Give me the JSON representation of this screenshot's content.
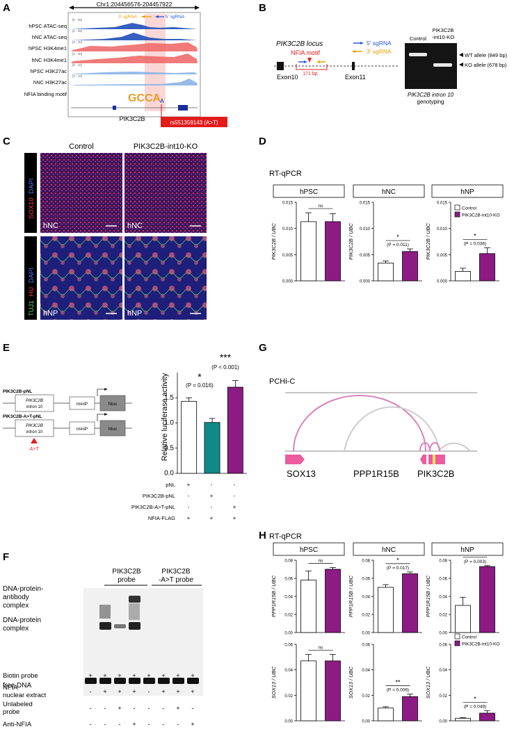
{
  "panels": {
    "A": {
      "letter": "A",
      "coord": "Chr1:204456576-204457922",
      "sgrna3": "3' sgRNA",
      "sgrna5": "5' sgRNA",
      "tracks": [
        "hPSC ATAC-seq",
        "hNC ATAC-seq",
        "hPSC H3K4me1",
        "hNC H3K4me1",
        "hPSC H3K27ac",
        "hNC H3K27ac",
        "NFIA binding motif"
      ],
      "scales": [
        "[0 - 35]",
        "[0 - 25]",
        "[0 - 40]",
        "[0 - 40]",
        "[0 - 10]",
        "[0 - 10]"
      ],
      "gene": "PIK3C2B",
      "motif": "GCCA",
      "motif_alt": "A",
      "snp": "rs551359143 (A>T)",
      "track_colors": [
        "#1f4fb8",
        "#1f4fb8",
        "#ef6b6b",
        "#ef6b6b",
        "#89b4e6",
        "#89b4e6"
      ]
    },
    "B": {
      "letter": "B",
      "locus": "PIK3C2B locus",
      "nfia_motif": "NFIA motif",
      "bp171": "171 bp",
      "exon10": "Exon10",
      "exon11": "Exon11",
      "sg5": "5' sgRNA",
      "sg3": "3' sgRNA",
      "gel_control": "Control",
      "gel_ko1": "PIK3C2B",
      "gel_ko2": "-int10-KO",
      "wt_allele": "WT allele (849 bp)",
      "ko_allele": "KO allele (678 bp)",
      "caption1": "PIK3C2B intron 10",
      "caption2": "genotyping"
    },
    "C": {
      "letter": "C",
      "col_control": "Control",
      "col_ko": "PIK3C2B-int10-KO",
      "row1_sox10": "SOX10",
      "row1_dapi": "DAPI",
      "row2_tuj1": "TUJ1",
      "row2_hu": "HU",
      "row2_dapi": "DAPI",
      "hnc": "hNC",
      "hnp": "hNP"
    },
    "D": {
      "letter": "D",
      "title": "RT-qPCR",
      "legend_control": "Control",
      "legend_ko": "PIK3C2B-int10-KO"
    },
    "E": {
      "letter": "E",
      "construct1": "PIK3C2B-pNL",
      "construct2": "PIK3C2B-A>T-pNL",
      "intron1": "PIK3C2B",
      "intron2": "intron 10",
      "minip": "miniP",
      "nluc": "Nluc",
      "mut": "A>T",
      "ylabel": "Relative luciferase activity",
      "p1": "(P = 0.016)",
      "p2": "(P < 0.001)",
      "star1": "*",
      "star2": "***",
      "row_labels": [
        "pNL",
        "PIK3C2B-pNL",
        "PIK3C2B-A>T-pNL",
        "NFIA-FLAG"
      ],
      "row_signs": [
        [
          "+",
          "-",
          "-"
        ],
        [
          "-",
          "+",
          "-"
        ],
        [
          "-",
          "-",
          "+"
        ],
        [
          "+",
          "+",
          "+"
        ]
      ]
    },
    "F": {
      "letter": "F",
      "probe1": [
        "PIK3C2B",
        "probe"
      ],
      "probe2": [
        "PIK3C2B",
        "-A>T probe"
      ],
      "band1": [
        "DNA-protein-",
        "antibody",
        "complex"
      ],
      "band2": [
        "DNA-protein",
        "complex"
      ],
      "band3": "free DNA",
      "rows": [
        {
          "label": [
            "Biotin probe"
          ],
          "signs": [
            "+",
            "+",
            "+",
            "+",
            "+",
            "+",
            "+",
            "+"
          ]
        },
        {
          "label": [
            "NFIA",
            "nuclear extract"
          ],
          "signs": [
            "-",
            "+",
            "+",
            "+",
            "-",
            "+",
            "+",
            "+"
          ]
        },
        {
          "label": [
            "Unlabeled",
            "probe"
          ],
          "signs": [
            "-",
            "-",
            "+",
            "-",
            "-",
            "-",
            "+",
            "-"
          ]
        },
        {
          "label": [
            "Anti-NFIA"
          ],
          "signs": [
            "-",
            "-",
            "-",
            "+",
            "-",
            "-",
            "-",
            "+"
          ]
        }
      ]
    },
    "G": {
      "letter": "G",
      "title": "PCHi-C",
      "genes": [
        "SOX13",
        "PPP1R15B",
        "PIK3C2B"
      ]
    },
    "H": {
      "letter": "H",
      "title": "RT-qPCR",
      "legend_control": "Control",
      "legend_ko": "PIK3C2B-int10-KO"
    }
  },
  "chart_data": [
    {
      "id": "D-hPSC",
      "type": "bar",
      "title": "hPSC",
      "ylabel": "PIK3C2B / UBC",
      "ylim": [
        0,
        0.015
      ],
      "yticks": [
        "0.000",
        "0.005",
        "0.010",
        "0.015"
      ],
      "categories": [
        "Control",
        "PIK3C2B-int10-KO"
      ],
      "values": [
        0.0113,
        0.0113
      ],
      "errors": [
        0.0017,
        0.0015
      ],
      "sig": "ns",
      "p": ""
    },
    {
      "id": "D-hNC",
      "type": "bar",
      "title": "hNC",
      "ylabel": "PIK3C2B / UBC",
      "ylim": [
        0,
        0.015
      ],
      "yticks": [
        "0.000",
        "0.005",
        "0.010",
        "0.015"
      ],
      "categories": [
        "Control",
        "PIK3C2B-int10-KO"
      ],
      "values": [
        0.0034,
        0.0056
      ],
      "errors": [
        0.0004,
        0.0005
      ],
      "sig": "*",
      "p": "(P = 0.011)"
    },
    {
      "id": "D-hNP",
      "type": "bar",
      "title": "hNP",
      "ylabel": "PIK3C2B / UBC",
      "ylim": [
        0,
        0.015
      ],
      "yticks": [
        "0.000",
        "0.005",
        "0.010",
        "0.015"
      ],
      "categories": [
        "Control",
        "PIK3C2B-int10-KO"
      ],
      "values": [
        0.0018,
        0.0052
      ],
      "errors": [
        0.0006,
        0.0011
      ],
      "sig": "*",
      "p": "(P = 0.036)"
    },
    {
      "id": "E",
      "type": "bar",
      "ylabel": "Relative luciferase activity",
      "ylim": [
        0,
        2.0
      ],
      "yticks": [
        "0.0",
        "0.5",
        "1.0",
        "1.5"
      ],
      "categories": [
        "pNL",
        "PIK3C2B-pNL",
        "PIK3C2B-A>T-pNL"
      ],
      "values": [
        1.43,
        1.01,
        1.71
      ],
      "errors": [
        0.07,
        0.08,
        0.13
      ],
      "colors": [
        "#ffffff",
        "#0f8a87",
        "#8c1b84"
      ]
    },
    {
      "id": "H-PPP-hPSC",
      "type": "bar",
      "title": "hPSC",
      "ylabel": "PPP1R15B / UBC",
      "ylim": [
        0,
        0.08
      ],
      "yticks": [
        "0.00",
        "0.02",
        "0.04",
        "0.06",
        "0.08"
      ],
      "categories": [
        "Control",
        "PIK3C2B-int10-KO"
      ],
      "values": [
        0.058,
        0.07
      ],
      "errors": [
        0.01,
        0.002
      ],
      "sig": "ns",
      "p": ""
    },
    {
      "id": "H-PPP-hNC",
      "type": "bar",
      "title": "hNC",
      "ylabel": "PPP1R15B / UBC",
      "ylim": [
        0,
        0.08
      ],
      "yticks": [
        "0.00",
        "0.02",
        "0.04",
        "0.06",
        "0.08"
      ],
      "categories": [
        "Control",
        "PIK3C2B-int10-KO"
      ],
      "values": [
        0.05,
        0.065
      ],
      "errors": [
        0.003,
        0.002
      ],
      "sig": "*",
      "p": "(P = 0.017)"
    },
    {
      "id": "H-PPP-hNP",
      "type": "bar",
      "title": "hNP",
      "ylabel": "PPP1R15B / UBC",
      "ylim": [
        0,
        0.08
      ],
      "yticks": [
        "0.00",
        "0.02",
        "0.04",
        "0.06",
        "0.08"
      ],
      "categories": [
        "Control",
        "PIK3C2B-int10-KO"
      ],
      "values": [
        0.03,
        0.073
      ],
      "errors": [
        0.009,
        0.001
      ],
      "sig": "**",
      "p": "(P = 0.003)"
    },
    {
      "id": "H-SOX-hPSC",
      "type": "bar",
      "ylabel": "SOX13 / UBC",
      "ylim": [
        0,
        0.06
      ],
      "yticks": [
        "0.00",
        "0.02",
        "0.04",
        "0.06"
      ],
      "categories": [
        "Control",
        "PIK3C2B-int10-KO"
      ],
      "values": [
        0.047,
        0.047
      ],
      "errors": [
        0.005,
        0.005
      ],
      "sig": "ns",
      "p": ""
    },
    {
      "id": "H-SOX-hNC",
      "type": "bar",
      "ylabel": "SOX13 / UBC",
      "ylim": [
        0,
        0.06
      ],
      "yticks": [
        "0.00",
        "0.02",
        "0.04",
        "0.06"
      ],
      "categories": [
        "Control",
        "PIK3C2B-int10-KO"
      ],
      "values": [
        0.01,
        0.019
      ],
      "errors": [
        0.001,
        0.002
      ],
      "sig": "**",
      "p": "(P = 0.006)"
    },
    {
      "id": "H-SOX-hNP",
      "type": "bar",
      "ylabel": "SOX13 / UBC",
      "ylim": [
        0,
        0.06
      ],
      "yticks": [
        "0.00",
        "0.02",
        "0.04",
        "0.06"
      ],
      "categories": [
        "Control",
        "PIK3C2B-int10-KO"
      ],
      "values": [
        0.002,
        0.006
      ],
      "errors": [
        0.0005,
        0.002
      ],
      "sig": "*",
      "p": "(P = 0.049)"
    }
  ],
  "colors": {
    "ko_bar": "#8c1b84",
    "teal_bar": "#0f8a87",
    "pchic_pink": "#e07ab8",
    "sox13_pink": "#ea5b9f"
  }
}
